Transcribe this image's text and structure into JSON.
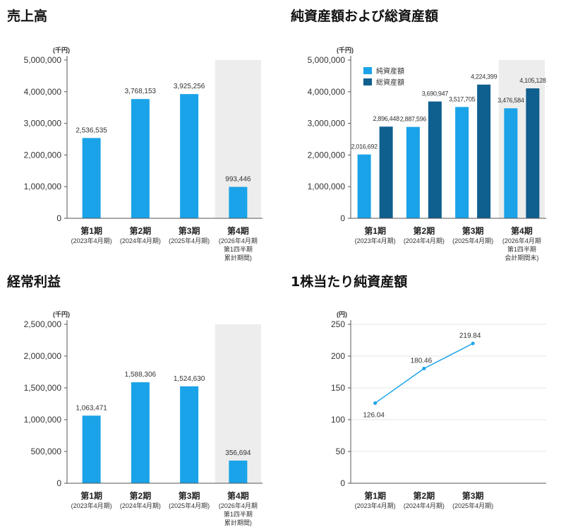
{
  "palette": {
    "light": "#1aa3e8",
    "dark": "#0f5f8f",
    "shade": "#ededed",
    "axis": "#555555",
    "grid": "#e6e6e6"
  },
  "charts": [
    {
      "title": "売上高",
      "unit": "(千円)",
      "chart_data": {
        "type": "bar",
        "title": "売上高",
        "ylabel": "(千円)",
        "ylim": [
          0,
          5000000
        ],
        "yticks": [
          "5,000,000",
          "4,000,000",
          "3,000,000",
          "2,000,000",
          "1,000,000",
          "0"
        ],
        "ytick_values": [
          5000000,
          4000000,
          3000000,
          2000000,
          1000000,
          0
        ],
        "categories": [
          {
            "main": "第1期",
            "sub": [
              "(2023年4月期)"
            ]
          },
          {
            "main": "第2期",
            "sub": [
              "(2024年4月期)"
            ]
          },
          {
            "main": "第3期",
            "sub": [
              "(2025年4月期)"
            ]
          },
          {
            "main": "第4期",
            "sub": [
              "(2026年4月期",
              "第1四半期",
              "累計期間)"
            ]
          }
        ],
        "shaded_category": 3,
        "series": [
          {
            "values": [
              2536535,
              3768153,
              3925256,
              993446
            ],
            "labels": [
              "2,536,535",
              "3,768,153",
              "3,925,256",
              "993,446"
            ]
          }
        ]
      }
    },
    {
      "title": "純資産額および総資産額",
      "unit": "(千円)",
      "chart_data": {
        "type": "bar",
        "title": "純資産額および総資産額",
        "ylabel": "(千円)",
        "ylim": [
          0,
          5000000
        ],
        "yticks": [
          "5,000,000",
          "4,000,000",
          "3,000,000",
          "2,000,000",
          "1,000,000",
          "0"
        ],
        "ytick_values": [
          5000000,
          4000000,
          3000000,
          2000000,
          1000000,
          0
        ],
        "legend": "top-left",
        "categories": [
          {
            "main": "第1期",
            "sub": [
              "(2023年4月期)"
            ]
          },
          {
            "main": "第2期",
            "sub": [
              "(2024年4月期)"
            ]
          },
          {
            "main": "第3期",
            "sub": [
              "(2025年4月期)"
            ]
          },
          {
            "main": "第4期",
            "sub": [
              "(2026年4月期",
              "第1四半期",
              "会計期間末)"
            ]
          }
        ],
        "shaded_category": 3,
        "series": [
          {
            "name": "純資産額",
            "color": "light",
            "values": [
              2016692,
              2887596,
              3517705,
              3476584
            ],
            "labels": [
              "2,016,692",
              "2,887,596",
              "3,517,705",
              "3,476,584"
            ]
          },
          {
            "name": "総資産額",
            "color": "dark",
            "values": [
              2896448,
              3690947,
              4224399,
              4105128
            ],
            "labels": [
              "2,896,448",
              "3,690,947",
              "4,224,399",
              "4,105,128"
            ]
          }
        ]
      }
    },
    {
      "title": "経常利益",
      "unit": "(千円)",
      "chart_data": {
        "type": "bar",
        "title": "経常利益",
        "ylabel": "(千円)",
        "ylim": [
          0,
          2500000
        ],
        "yticks": [
          "2,500,000",
          "2,000,000",
          "1,500,000",
          "1,000,000",
          "500,000",
          "0"
        ],
        "ytick_values": [
          2500000,
          2000000,
          1500000,
          1000000,
          500000,
          0
        ],
        "categories": [
          {
            "main": "第1期",
            "sub": [
              "(2023年4月期)"
            ]
          },
          {
            "main": "第2期",
            "sub": [
              "(2024年4月期)"
            ]
          },
          {
            "main": "第3期",
            "sub": [
              "(2025年4月期)"
            ]
          },
          {
            "main": "第4期",
            "sub": [
              "(2026年4月期",
              "第1四半期",
              "累計期間)"
            ]
          }
        ],
        "shaded_category": 3,
        "series": [
          {
            "values": [
              1063471,
              1588306,
              1524630,
              356694
            ],
            "labels": [
              "1,063,471",
              "1,588,306",
              "1,524,630",
              "356,694"
            ]
          }
        ]
      }
    },
    {
      "title": "1株当たり純資産額",
      "unit": "(円)",
      "chart_data": {
        "type": "line",
        "title": "1株当たり純資産額",
        "ylabel": "(円)",
        "ylim": [
          0,
          250
        ],
        "yticks": [
          "250",
          "200",
          "150",
          "100",
          "50",
          "0"
        ],
        "ytick_values": [
          250,
          200,
          150,
          100,
          50,
          0
        ],
        "grid": true,
        "categories": [
          {
            "main": "第1期",
            "sub": [
              "(2023年4月期)"
            ]
          },
          {
            "main": "第2期",
            "sub": [
              "(2024年4月期)"
            ]
          },
          {
            "main": "第3期",
            "sub": [
              "(2025年4月期)"
            ]
          }
        ],
        "series": [
          {
            "values": [
              126.04,
              180.46,
              219.84
            ],
            "labels": [
              "126.04",
              "180.46",
              "219.84"
            ]
          }
        ]
      }
    }
  ]
}
